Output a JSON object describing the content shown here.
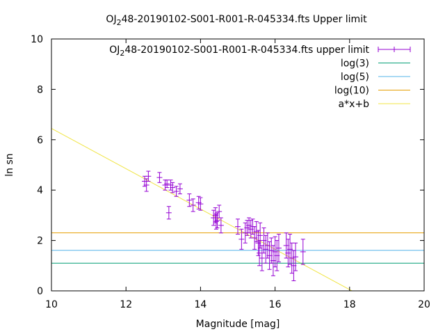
{
  "chart_data": {
    "type": "scatter",
    "title_parts": [
      "OJ",
      "2",
      "48-20190102-S001-R001-R-045334.fts Upper limit"
    ],
    "xlabel": "Magnitude [mag]",
    "ylabel": "ln sn",
    "xlim": [
      10,
      20
    ],
    "ylim": [
      0,
      10
    ],
    "x_ticks": [
      10,
      12,
      14,
      16,
      18,
      20
    ],
    "y_ticks": [
      0,
      2,
      4,
      6,
      8,
      10
    ],
    "grid": false,
    "legend_position": "top-right",
    "legend": [
      {
        "label_parts": [
          "OJ",
          "2",
          "48-20190102-S001-R001-R-045334.fts upper limit"
        ],
        "style": "errorbars",
        "color": "#9400d3"
      },
      {
        "label": "log(3)",
        "style": "line",
        "color": "#009e73"
      },
      {
        "label": "log(5)",
        "style": "line",
        "color": "#56b4e9"
      },
      {
        "label": "log(10)",
        "style": "line",
        "color": "#e69f00"
      },
      {
        "label": "a*x+b",
        "style": "line",
        "color": "#f0e442"
      }
    ],
    "series": [
      {
        "name": "OJ 2 48-20190102-S001-R001-R-045334.fts upper limit",
        "color": "#9400d3",
        "points": [
          [
            12.5,
            4.35,
            0.2
          ],
          [
            12.55,
            4.2,
            0.25
          ],
          [
            12.6,
            4.55,
            0.2
          ],
          [
            12.9,
            4.5,
            0.2
          ],
          [
            13.05,
            4.2,
            0.2
          ],
          [
            13.1,
            4.25,
            0.15
          ],
          [
            13.15,
            3.1,
            0.25
          ],
          [
            13.2,
            4.2,
            0.2
          ],
          [
            13.25,
            4.1,
            0.2
          ],
          [
            13.35,
            3.95,
            0.2
          ],
          [
            13.45,
            4.05,
            0.2
          ],
          [
            13.7,
            3.6,
            0.25
          ],
          [
            13.8,
            3.4,
            0.25
          ],
          [
            13.95,
            3.5,
            0.25
          ],
          [
            14.0,
            3.45,
            0.25
          ],
          [
            14.35,
            2.9,
            0.3
          ],
          [
            14.4,
            3.0,
            0.3
          ],
          [
            14.42,
            2.75,
            0.3
          ],
          [
            14.45,
            2.8,
            0.3
          ],
          [
            14.5,
            3.15,
            0.25
          ],
          [
            14.55,
            2.6,
            0.3
          ],
          [
            15.0,
            2.55,
            0.3
          ],
          [
            15.1,
            2.05,
            0.4
          ],
          [
            15.2,
            2.3,
            0.4
          ],
          [
            15.25,
            2.5,
            0.3
          ],
          [
            15.3,
            2.6,
            0.3
          ],
          [
            15.35,
            2.45,
            0.35
          ],
          [
            15.4,
            2.55,
            0.3
          ],
          [
            15.45,
            2.1,
            0.45
          ],
          [
            15.5,
            2.35,
            0.4
          ],
          [
            15.55,
            1.9,
            0.5
          ],
          [
            15.58,
            1.5,
            0.5
          ],
          [
            15.6,
            2.2,
            0.5
          ],
          [
            15.65,
            1.3,
            0.5
          ],
          [
            15.7,
            2.0,
            0.5
          ],
          [
            15.75,
            1.65,
            0.55
          ],
          [
            15.8,
            1.8,
            0.5
          ],
          [
            15.85,
            1.4,
            0.55
          ],
          [
            15.9,
            1.6,
            0.5
          ],
          [
            15.95,
            1.2,
            0.6
          ],
          [
            16.0,
            1.55,
            0.6
          ],
          [
            16.05,
            1.4,
            0.6
          ],
          [
            16.1,
            1.7,
            0.55
          ],
          [
            16.3,
            1.8,
            0.5
          ],
          [
            16.35,
            1.5,
            0.55
          ],
          [
            16.4,
            1.65,
            0.6
          ],
          [
            16.45,
            1.3,
            0.6
          ],
          [
            16.5,
            1.0,
            0.6
          ],
          [
            16.55,
            1.35,
            0.55
          ],
          [
            16.75,
            1.55,
            0.5
          ]
        ]
      }
    ],
    "reference_lines": [
      {
        "name": "log(3)",
        "y": 1.0986,
        "color": "#009e73"
      },
      {
        "name": "log(5)",
        "y": 1.6094,
        "color": "#56b4e9"
      },
      {
        "name": "log(10)",
        "y": 2.3026,
        "color": "#e69f00"
      }
    ],
    "fit_line": {
      "name": "a*x+b",
      "a": -0.8,
      "b": 14.45,
      "x_range": [
        10,
        18.06
      ],
      "color": "#f0e442"
    }
  }
}
